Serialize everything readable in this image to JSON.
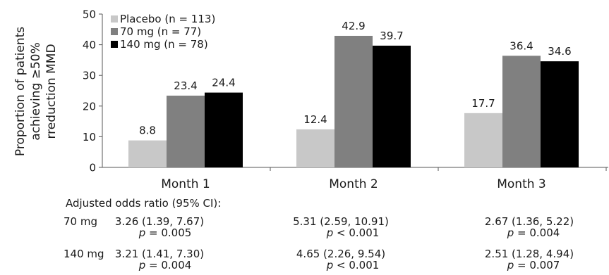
{
  "chart_data": {
    "type": "bar",
    "ylabel": [
      "Proportion of patients",
      "achieving ≥50%",
      "rreduction MMD"
    ],
    "ylim": [
      0,
      50
    ],
    "yticks": [
      0,
      10,
      20,
      30,
      40,
      50
    ],
    "categories": [
      "Month 1",
      "Month 2",
      "Month 3"
    ],
    "series": [
      {
        "name": "Placebo (n = 113)",
        "color": "#c8c8c8",
        "values": [
          8.8,
          12.4,
          17.7
        ],
        "labels": [
          "8.8",
          "12.4",
          "17.7"
        ]
      },
      {
        "name": "70 mg (n = 77)",
        "color": "#808080",
        "values": [
          23.4,
          42.9,
          36.4
        ],
        "labels": [
          "23.4",
          "42.9",
          "36.4"
        ]
      },
      {
        "name": "140 mg (n = 78)",
        "color": "#000000",
        "values": [
          24.4,
          39.7,
          34.6
        ],
        "labels": [
          "24.4",
          "39.7",
          "34.6"
        ]
      }
    ],
    "legend_position": "top-left",
    "grid": false
  },
  "odds_ratio_table": {
    "title": "Adjusted odds ratio (95% CI):",
    "p_symbol": "p",
    "rows": [
      {
        "dose": "70 mg",
        "cells": [
          {
            "ci": "3.26 (1.39, 7.67)",
            "p": "= 0.005"
          },
          {
            "ci": "5.31 (2.59, 10.91)",
            "p": "< 0.001"
          },
          {
            "ci": "2.67 (1.36, 5.22)",
            "p": "= 0.004"
          }
        ]
      },
      {
        "dose": "140 mg",
        "cells": [
          {
            "ci": "3.21 (1.41, 7.30)",
            "p": "= 0.004"
          },
          {
            "ci": "4.65 (2.26, 9.54)",
            "p": "< 0.001"
          },
          {
            "ci": "2.51 (1.28, 4.94)",
            "p": "= 0.007"
          }
        ]
      }
    ]
  }
}
